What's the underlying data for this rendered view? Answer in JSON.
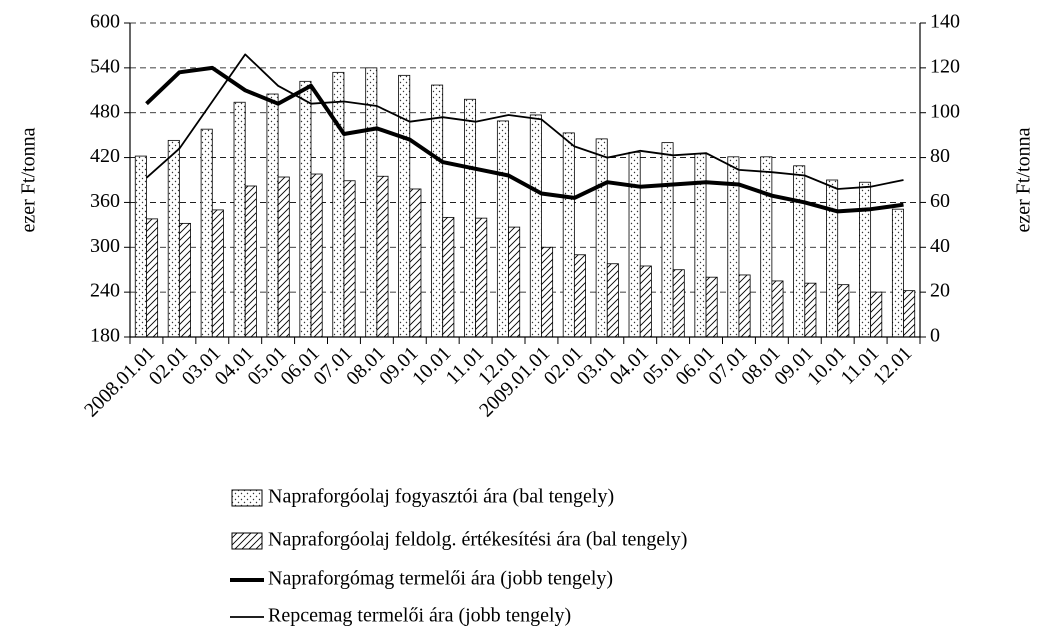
{
  "chart_data": {
    "type": "bar",
    "categories": [
      "2008.01.01",
      "02.01",
      "03.01",
      "04.01",
      "05.01",
      "06.01",
      "07.01",
      "08.01",
      "09.01",
      "10.01",
      "11.01",
      "12.01",
      "2009.01.01",
      "02.01",
      "03.01",
      "04.01",
      "05.01",
      "06.01",
      "07.01",
      "08.01",
      "09.01",
      "10.01",
      "11.01",
      "12.01"
    ],
    "ylabel": "ezer Ft/tonna",
    "y2label": "ezer Ft/tonna",
    "ylim": [
      180,
      600
    ],
    "yticks": [
      180,
      240,
      300,
      360,
      420,
      480,
      540,
      600
    ],
    "y2lim": [
      0,
      140
    ],
    "y2ticks": [
      0,
      20,
      40,
      60,
      80,
      100,
      120,
      140
    ],
    "grid": true,
    "series": [
      {
        "name": "Napraforgóolaj fogyasztói ára (bal tengely)",
        "type": "bar",
        "pattern": "dots",
        "color": "#000000",
        "values": [
          422,
          443,
          458,
          494,
          505,
          522,
          534,
          540,
          530,
          517,
          498,
          469,
          477,
          453,
          445,
          427,
          440,
          425,
          421,
          421,
          409,
          390,
          387,
          351
        ]
      },
      {
        "name": "Napraforgóolaj feldolg. értékesítési ára (bal tengely)",
        "type": "bar",
        "pattern": "hatch",
        "color": "#000000",
        "values": [
          338,
          332,
          350,
          382,
          394,
          398,
          389,
          395,
          378,
          340,
          339,
          327,
          300,
          290,
          278,
          275,
          270,
          260,
          263,
          255,
          252,
          250,
          240,
          242
        ]
      },
      {
        "name": "Napraforgómag termelői ára (jobb tengely)",
        "type": "line",
        "axis": "y2",
        "line_width": 4,
        "color": "#000000",
        "values": [
          104,
          118,
          120,
          110,
          104,
          112,
          90.5,
          93,
          88,
          78,
          75,
          72,
          64,
          62,
          69,
          67,
          68,
          69,
          68,
          63,
          60,
          56,
          57,
          59
        ]
      },
      {
        "name": "Repcemag termelői ára (jobb tengely)",
        "type": "line",
        "axis": "y2",
        "line_width": 1.8,
        "color": "#000000",
        "values": [
          71,
          84,
          105,
          126,
          112,
          104,
          105,
          103,
          96,
          98,
          96,
          99,
          97,
          85,
          80,
          83,
          81,
          82,
          74.5,
          73.5,
          72,
          66,
          67,
          70
        ]
      }
    ]
  }
}
